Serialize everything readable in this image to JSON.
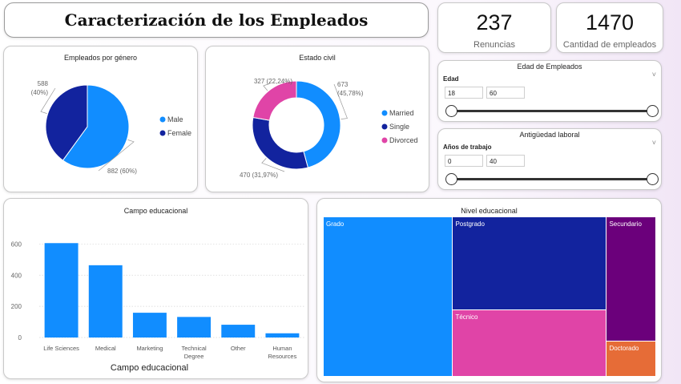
{
  "header": {
    "title": "Caracterización de los Empleados"
  },
  "kpis": [
    {
      "value": "237",
      "label": "Renuncias"
    },
    {
      "value": "1470",
      "label": "Cantidad de empleados"
    }
  ],
  "slicers": {
    "edad": {
      "title": "Edad de Empleados",
      "field": "Edad",
      "min": "18",
      "max": "60"
    },
    "antiguedad": {
      "title": "Antigüedad laboral",
      "field": "Años de trabajo",
      "min": "0",
      "max": "40"
    }
  },
  "colors": {
    "blue": "#118dff",
    "navy": "#12239e",
    "pink": "#e044a7",
    "purple": "#6b007b",
    "orange": "#e66c37",
    "chevron": "˅"
  },
  "chart_data": [
    {
      "type": "pie",
      "title": "Empleados por género",
      "slices": [
        {
          "name": "Male",
          "value": 882,
          "label": "882 (60%)",
          "color": "#118dff"
        },
        {
          "name": "Female",
          "value": 588,
          "label": "588 (40%)",
          "label_lines": [
            "588",
            "(40%)"
          ],
          "color": "#12239e"
        }
      ],
      "legend": "right"
    },
    {
      "type": "pie",
      "title": "Estado civil",
      "donut": true,
      "slices": [
        {
          "name": "Married",
          "value": 673,
          "label": "673 (45,78%)",
          "label_lines": [
            "673",
            "(45,78%)"
          ],
          "color": "#118dff"
        },
        {
          "name": "Single",
          "value": 470,
          "label": "470 (31,97%)",
          "color": "#12239e"
        },
        {
          "name": "Divorced",
          "value": 327,
          "label": "327 (22,24%)",
          "color": "#e044a7"
        }
      ],
      "legend": "right"
    },
    {
      "type": "bar",
      "title": "Campo educacional",
      "xlabel": "Campo educacional",
      "categories": [
        "Life Sciences",
        "Medical",
        "Marketing",
        "Technical Degree",
        "Other",
        "Human Resources"
      ],
      "category_lines": [
        [
          "Life Sciences"
        ],
        [
          "Medical"
        ],
        [
          "Marketing"
        ],
        [
          "Technical",
          "Degree"
        ],
        [
          "Other"
        ],
        [
          "Human",
          "Resources"
        ]
      ],
      "values": [
        606,
        464,
        159,
        132,
        82,
        27
      ],
      "ylim": [
        0,
        700
      ],
      "yticks": [
        0,
        200,
        400,
        600
      ],
      "grid": true,
      "color": "#118dff"
    },
    {
      "type": "treemap",
      "title": "Nivel educacional",
      "items": [
        {
          "name": "Grado",
          "value": 572,
          "color": "#118dff"
        },
        {
          "name": "Postgrado",
          "value": 398,
          "color": "#12239e"
        },
        {
          "name": "Técnico",
          "value": 282,
          "color": "#e044a7"
        },
        {
          "name": "Secundario",
          "value": 170,
          "color": "#6b007b"
        },
        {
          "name": "Doctorado",
          "value": 48,
          "color": "#e66c37"
        }
      ]
    }
  ]
}
